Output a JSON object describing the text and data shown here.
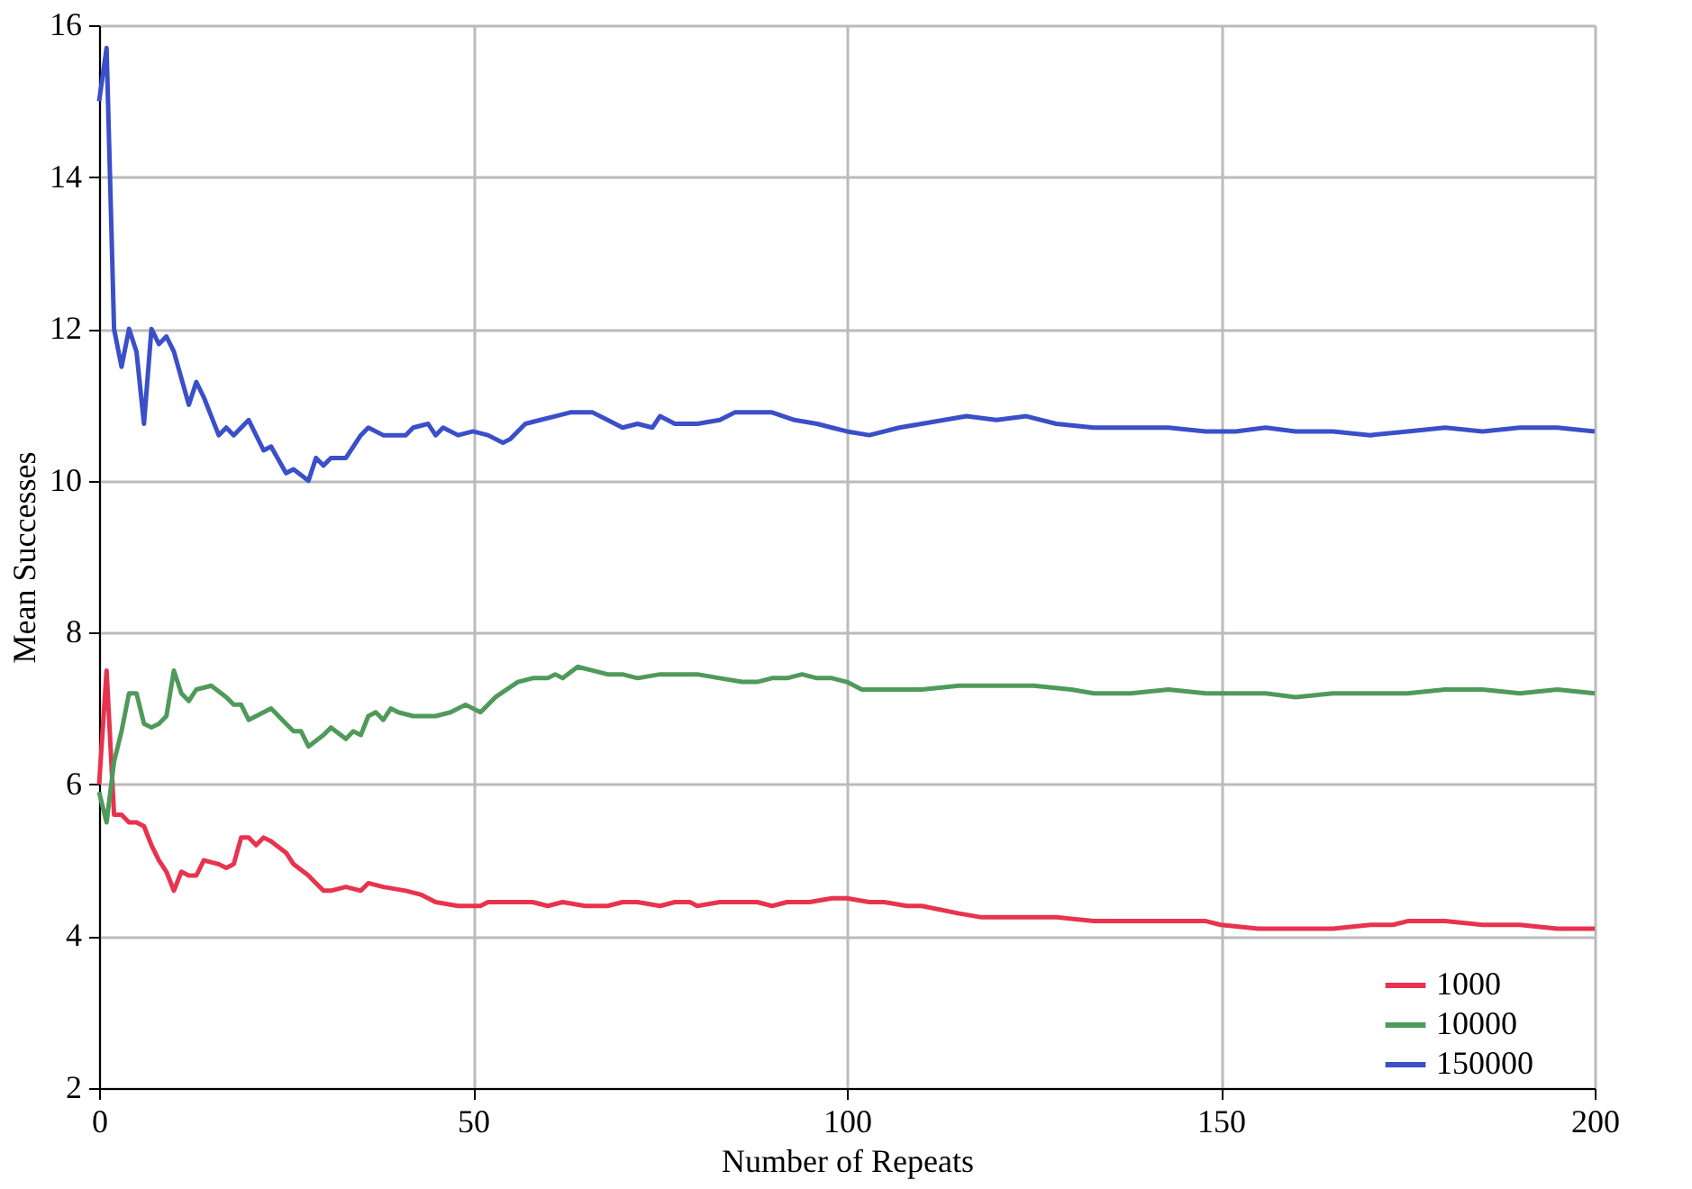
{
  "chart_data": {
    "type": "line",
    "xlabel": "Number of Repeats",
    "ylabel": "Mean Successes",
    "xlim": [
      0,
      200
    ],
    "xticks": [
      0,
      50,
      100,
      150,
      200
    ],
    "ylim": [
      2,
      16
    ],
    "yticks": [
      2,
      4,
      6,
      8,
      10,
      12,
      14,
      16
    ],
    "grid": true,
    "legend": "bottom right",
    "line_style": "solid",
    "marker": "none",
    "series": [
      {
        "name": "1000",
        "color": "#e8334f",
        "x": [
          0,
          1,
          2,
          3,
          4,
          5,
          6,
          7,
          8,
          9,
          10,
          11,
          12,
          13,
          14,
          16,
          17,
          18,
          19,
          20,
          21,
          22,
          23,
          25,
          26,
          28,
          29,
          30,
          31,
          33,
          35,
          36,
          38,
          41,
          43,
          45,
          48,
          50,
          51,
          52,
          54,
          56,
          58,
          60,
          62,
          65,
          68,
          70,
          72,
          75,
          77,
          79,
          80,
          83,
          86,
          88,
          90,
          92,
          95,
          98,
          100,
          103,
          105,
          108,
          110,
          115,
          118,
          123,
          128,
          133,
          138,
          143,
          148,
          150,
          155,
          160,
          165,
          170,
          173,
          175,
          180,
          185,
          190,
          195,
          200
        ],
        "values": [
          6.0,
          7.5,
          5.6,
          5.6,
          5.5,
          5.5,
          5.45,
          5.2,
          5.0,
          4.85,
          4.6,
          4.85,
          4.8,
          4.8,
          5.0,
          4.95,
          4.9,
          4.95,
          5.3,
          5.3,
          5.2,
          5.3,
          5.25,
          5.1,
          4.95,
          4.8,
          4.7,
          4.6,
          4.6,
          4.65,
          4.6,
          4.7,
          4.65,
          4.6,
          4.55,
          4.45,
          4.4,
          4.4,
          4.4,
          4.45,
          4.45,
          4.45,
          4.45,
          4.4,
          4.45,
          4.4,
          4.4,
          4.45,
          4.45,
          4.4,
          4.45,
          4.45,
          4.4,
          4.45,
          4.45,
          4.45,
          4.4,
          4.45,
          4.45,
          4.5,
          4.5,
          4.45,
          4.45,
          4.4,
          4.4,
          4.3,
          4.25,
          4.25,
          4.25,
          4.2,
          4.2,
          4.2,
          4.2,
          4.15,
          4.1,
          4.1,
          4.1,
          4.15,
          4.15,
          4.2,
          4.2,
          4.15,
          4.15,
          4.1,
          4.1
        ]
      },
      {
        "name": "10000",
        "color": "#4f9a5a",
        "x": [
          0,
          1,
          2,
          3,
          4,
          5,
          6,
          7,
          8,
          9,
          10,
          11,
          12,
          13,
          15,
          17,
          18,
          19,
          20,
          22,
          23,
          25,
          26,
          27,
          28,
          30,
          31,
          33,
          34,
          35,
          36,
          37,
          38,
          39,
          40,
          42,
          45,
          47,
          49,
          51,
          53,
          56,
          58,
          60,
          61,
          62,
          64,
          66,
          68,
          70,
          72,
          75,
          78,
          80,
          83,
          86,
          88,
          90,
          92,
          94,
          96,
          98,
          100,
          102,
          105,
          110,
          115,
          120,
          125,
          130,
          133,
          138,
          143,
          148,
          152,
          156,
          160,
          165,
          170,
          175,
          180,
          185,
          190,
          195,
          200
        ],
        "values": [
          5.9,
          5.5,
          6.3,
          6.7,
          7.2,
          7.2,
          6.8,
          6.75,
          6.8,
          6.9,
          7.5,
          7.2,
          7.1,
          7.25,
          7.3,
          7.15,
          7.05,
          7.05,
          6.85,
          6.95,
          7.0,
          6.8,
          6.7,
          6.7,
          6.5,
          6.65,
          6.75,
          6.6,
          6.7,
          6.65,
          6.9,
          6.95,
          6.85,
          7.0,
          6.95,
          6.9,
          6.9,
          6.95,
          7.05,
          6.95,
          7.15,
          7.35,
          7.4,
          7.4,
          7.45,
          7.4,
          7.55,
          7.5,
          7.45,
          7.45,
          7.4,
          7.45,
          7.45,
          7.45,
          7.4,
          7.35,
          7.35,
          7.4,
          7.4,
          7.45,
          7.4,
          7.4,
          7.35,
          7.25,
          7.25,
          7.25,
          7.3,
          7.3,
          7.3,
          7.25,
          7.2,
          7.2,
          7.25,
          7.2,
          7.2,
          7.2,
          7.15,
          7.2,
          7.2,
          7.2,
          7.25,
          7.25,
          7.2,
          7.25,
          7.2
        ]
      },
      {
        "name": "150000",
        "color": "#3a4fc8",
        "x": [
          0,
          1,
          2,
          3,
          4,
          5,
          6,
          7,
          8,
          9,
          10,
          12,
          13,
          14,
          16,
          17,
          18,
          20,
          22,
          23,
          25,
          26,
          28,
          29,
          30,
          31,
          33,
          35,
          36,
          38,
          41,
          42,
          44,
          45,
          46,
          48,
          50,
          52,
          54,
          55,
          57,
          59,
          61,
          63,
          66,
          68,
          70,
          72,
          74,
          75,
          77,
          80,
          83,
          85,
          90,
          93,
          96,
          98,
          100,
          103,
          107,
          110,
          113,
          116,
          120,
          124,
          128,
          133,
          138,
          143,
          148,
          152,
          156,
          160,
          165,
          170,
          175,
          180,
          185,
          190,
          195,
          200
        ],
        "values": [
          15.0,
          15.7,
          12.0,
          11.5,
          12.0,
          11.7,
          10.75,
          12.0,
          11.8,
          11.9,
          11.7,
          11.0,
          11.3,
          11.1,
          10.6,
          10.7,
          10.6,
          10.8,
          10.4,
          10.45,
          10.1,
          10.15,
          10.0,
          10.3,
          10.2,
          10.3,
          10.3,
          10.6,
          10.7,
          10.6,
          10.6,
          10.7,
          10.75,
          10.6,
          10.7,
          10.6,
          10.65,
          10.6,
          10.5,
          10.55,
          10.75,
          10.8,
          10.85,
          10.9,
          10.9,
          10.8,
          10.7,
          10.75,
          10.7,
          10.85,
          10.75,
          10.75,
          10.8,
          10.9,
          10.9,
          10.8,
          10.75,
          10.7,
          10.65,
          10.6,
          10.7,
          10.75,
          10.8,
          10.85,
          10.8,
          10.85,
          10.75,
          10.7,
          10.7,
          10.7,
          10.65,
          10.65,
          10.7,
          10.65,
          10.65,
          10.6,
          10.65,
          10.7,
          10.65,
          10.7,
          10.7,
          10.65
        ]
      }
    ]
  }
}
